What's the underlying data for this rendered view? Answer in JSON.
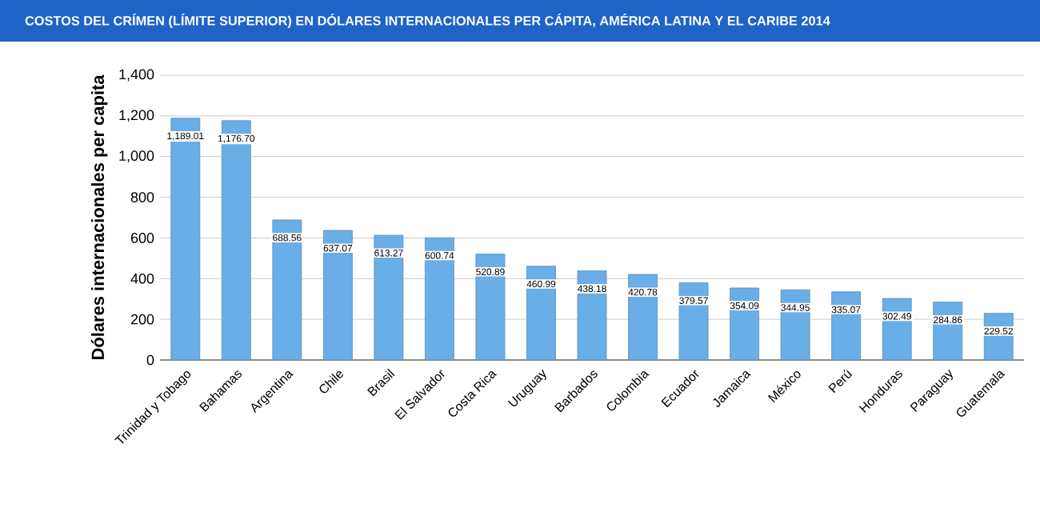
{
  "chart_data": {
    "type": "bar",
    "title": "COSTOS DEL CRÍMEN (LÍMITE SUPERIOR) EN DÓLARES INTERNACIONALES PER CÁPITA, AMÉRICA LATINA Y EL CARIBE 2014",
    "ylabel": "Dólares internacionales per capita",
    "categories": [
      "Trinidad y Tobago",
      "Bahamas",
      "Argentina",
      "Chile",
      "Brasil",
      "El Salvador",
      "Costa Rica",
      "Uruguay",
      "Barbados",
      "Colombia",
      "Ecuador",
      "Jamaica",
      "México",
      "Perú",
      "Honduras",
      "Paraguay",
      "Guatemala"
    ],
    "values": [
      1189.01,
      1176.7,
      688.56,
      637.07,
      613.27,
      600.74,
      520.89,
      460.99,
      438.18,
      420.78,
      379.57,
      354.09,
      344.95,
      335.07,
      302.49,
      284.86,
      229.52
    ],
    "value_labels": [
      "1,189.01",
      "1,176.70",
      "688.56",
      "637.07",
      "613.27",
      "600.74",
      "520.89",
      "460.99",
      "438.18",
      "420.78",
      "379.57",
      "354.09",
      "344.95",
      "335.07",
      "302.49",
      "284.86",
      "229.52"
    ],
    "color": "#6aaee8",
    "ylim": [
      0,
      1400
    ],
    "yticks": [
      {
        "value": 0,
        "label": "0"
      },
      {
        "value": 200,
        "label": "200"
      },
      {
        "value": 400,
        "label": "400"
      },
      {
        "value": 600,
        "label": "600"
      },
      {
        "value": 800,
        "label": "800"
      },
      {
        "value": 1000,
        "label": "1,000"
      },
      {
        "value": 1200,
        "label": "1,200"
      },
      {
        "value": 1400,
        "label": "1,400"
      }
    ],
    "grid": "y"
  }
}
